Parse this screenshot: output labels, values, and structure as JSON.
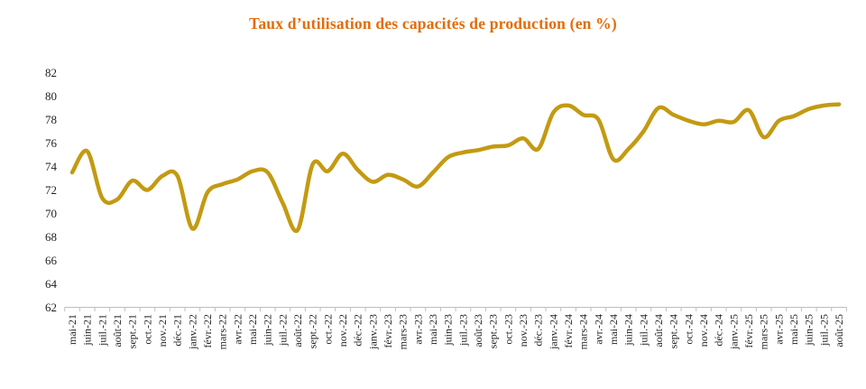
{
  "chart_data": {
    "type": "line",
    "title": "Taux d’utilisation des capacités de production (en %)",
    "xlabel": "",
    "ylabel": "",
    "ylim": [
      62,
      82
    ],
    "ytick_step": 2,
    "grid": false,
    "legend": "none",
    "smooth": true,
    "line_color": "#C39A12",
    "categories": [
      "mai-21",
      "juin-21",
      "juil.-21",
      "août-21",
      "sept.-21",
      "oct.-21",
      "nov.-21",
      "déc.-21",
      "janv.-22",
      "févr.-22",
      "mars-22",
      "avr.-22",
      "mai-22",
      "juin-22",
      "juil.-22",
      "août-22",
      "sept.-22",
      "oct.-22",
      "nov.-22",
      "déc.-22",
      "janv.-23",
      "févr.-23",
      "mars-23",
      "avr.-23",
      "mai-23",
      "juin-23",
      "juil.-23",
      "août-23",
      "sept.-23",
      "oct.-23",
      "nov.-23",
      "déc.-23",
      "janv.-24",
      "févr.-24",
      "mars-24",
      "avr.-24",
      "mai-24",
      "juin-24",
      "juil.-24",
      "août-24",
      "sept.-24",
      "oct.-24",
      "nov.-24",
      "déc.-24",
      "janv.-25",
      "févr.-25",
      "mars-25",
      "avr.-25",
      "mai-25",
      "juin-25",
      "juil.-25",
      "août-25"
    ],
    "values": [
      73.5,
      75.3,
      71.3,
      71.2,
      72.8,
      72.0,
      73.2,
      73.2,
      68.7,
      71.8,
      72.5,
      72.9,
      73.6,
      73.5,
      70.9,
      68.6,
      74.2,
      73.6,
      75.1,
      73.7,
      72.7,
      73.3,
      72.9,
      72.3,
      73.5,
      74.8,
      75.2,
      75.4,
      75.7,
      75.8,
      76.4,
      75.5,
      78.6,
      79.2,
      78.4,
      78.0,
      74.6,
      75.5,
      77.0,
      79.0,
      78.4,
      77.9,
      77.6,
      77.9,
      77.8,
      78.8,
      76.5,
      77.9,
      78.3,
      78.9,
      79.2,
      79.3
    ]
  },
  "colors": {
    "title": "#E36C0A",
    "line": "#C39A12",
    "axis": "#BFBFBF",
    "text": "#1F1F1F",
    "background": "#FFFFFF"
  }
}
